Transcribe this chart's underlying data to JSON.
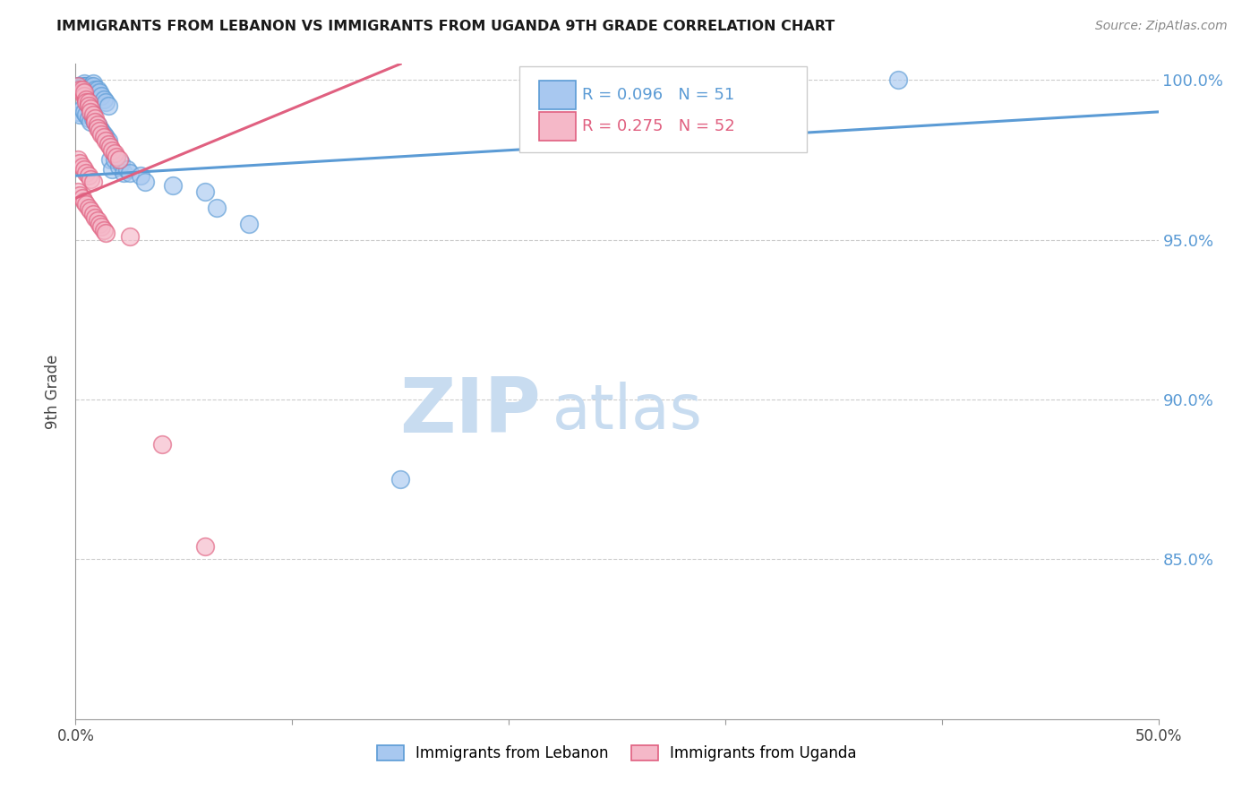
{
  "title": "IMMIGRANTS FROM LEBANON VS IMMIGRANTS FROM UGANDA 9TH GRADE CORRELATION CHART",
  "source": "Source: ZipAtlas.com",
  "ylabel": "9th Grade",
  "xlim": [
    0.0,
    0.5
  ],
  "ylim": [
    0.8,
    1.005
  ],
  "xticks": [
    0.0,
    0.1,
    0.2,
    0.3,
    0.4,
    0.5
  ],
  "xtick_labels": [
    "0.0%",
    "",
    "",
    "",
    "",
    "50.0%"
  ],
  "ytick_labels": [
    "85.0%",
    "90.0%",
    "95.0%",
    "100.0%"
  ],
  "yticks": [
    0.85,
    0.9,
    0.95,
    1.0
  ],
  "color_lebanon": "#A8C8F0",
  "color_uganda": "#F5B8C8",
  "edge_lebanon": "#5B9BD5",
  "edge_uganda": "#E06080",
  "trendline_color_lebanon": "#5B9BD5",
  "trendline_color_uganda": "#E06080",
  "watermark_zip": "ZIP",
  "watermark_atlas": "atlas",
  "watermark_color": "#C8DCF0",
  "lebanon_x": [
    0.001,
    0.002,
    0.003,
    0.004,
    0.004,
    0.005,
    0.005,
    0.006,
    0.007,
    0.007,
    0.008,
    0.008,
    0.009,
    0.01,
    0.01,
    0.011,
    0.012,
    0.013,
    0.014,
    0.015,
    0.016,
    0.017,
    0.018,
    0.02,
    0.021,
    0.022,
    0.024,
    0.025,
    0.03,
    0.032,
    0.045,
    0.06,
    0.065,
    0.08,
    0.001,
    0.002,
    0.003,
    0.004,
    0.005,
    0.006,
    0.007,
    0.008,
    0.009,
    0.01,
    0.011,
    0.012,
    0.013,
    0.014,
    0.015,
    0.15,
    0.38
  ],
  "lebanon_y": [
    0.998,
    0.997,
    0.998,
    0.999,
    0.998,
    0.998,
    0.997,
    0.996,
    0.998,
    0.997,
    0.999,
    0.998,
    0.997,
    0.996,
    0.997,
    0.996,
    0.995,
    0.994,
    0.993,
    0.992,
    0.975,
    0.972,
    0.975,
    0.973,
    0.974,
    0.971,
    0.972,
    0.971,
    0.97,
    0.968,
    0.967,
    0.965,
    0.96,
    0.955,
    0.99,
    0.989,
    0.991,
    0.99,
    0.989,
    0.988,
    0.987,
    0.988,
    0.987,
    0.986,
    0.985,
    0.984,
    0.983,
    0.982,
    0.981,
    0.875,
    1.0
  ],
  "uganda_x": [
    0.001,
    0.002,
    0.003,
    0.003,
    0.004,
    0.004,
    0.005,
    0.005,
    0.006,
    0.006,
    0.007,
    0.007,
    0.008,
    0.009,
    0.009,
    0.01,
    0.01,
    0.011,
    0.012,
    0.013,
    0.014,
    0.015,
    0.016,
    0.017,
    0.018,
    0.019,
    0.02,
    0.001,
    0.002,
    0.003,
    0.004,
    0.005,
    0.006,
    0.007,
    0.008,
    0.001,
    0.002,
    0.003,
    0.004,
    0.005,
    0.006,
    0.007,
    0.008,
    0.009,
    0.01,
    0.011,
    0.012,
    0.013,
    0.014,
    0.025,
    0.04,
    0.06
  ],
  "uganda_y": [
    0.998,
    0.997,
    0.996,
    0.997,
    0.995,
    0.996,
    0.994,
    0.993,
    0.993,
    0.992,
    0.991,
    0.99,
    0.989,
    0.988,
    0.987,
    0.986,
    0.985,
    0.984,
    0.983,
    0.982,
    0.981,
    0.98,
    0.979,
    0.978,
    0.977,
    0.976,
    0.975,
    0.975,
    0.974,
    0.973,
    0.972,
    0.971,
    0.97,
    0.969,
    0.968,
    0.965,
    0.964,
    0.963,
    0.962,
    0.961,
    0.96,
    0.959,
    0.958,
    0.957,
    0.956,
    0.955,
    0.954,
    0.953,
    0.952,
    0.951,
    0.886,
    0.854
  ]
}
